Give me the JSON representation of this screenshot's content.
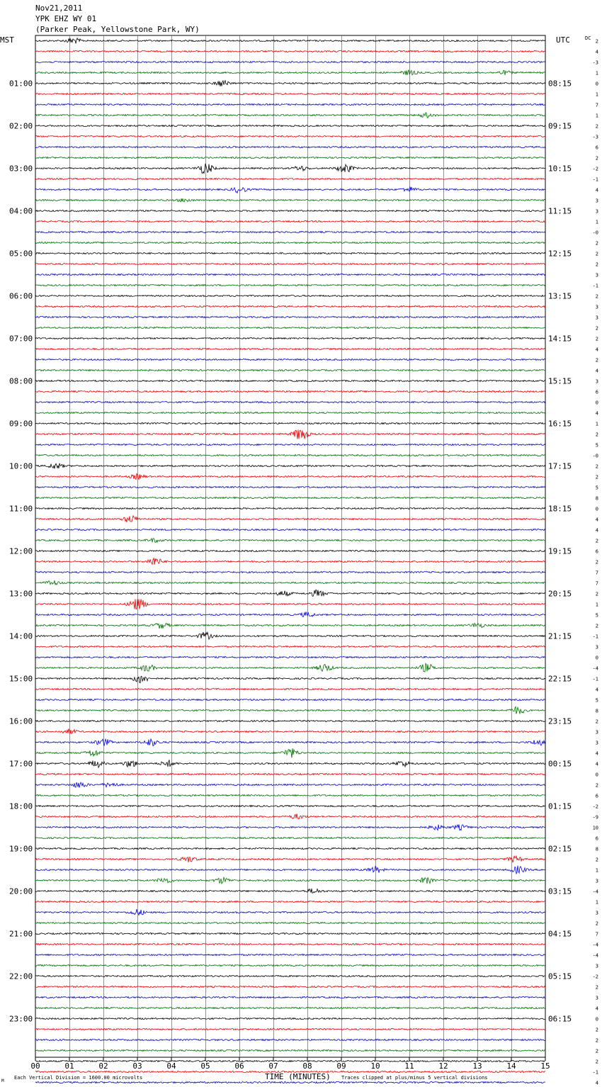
{
  "header": {
    "date": "Nov21,2011",
    "station": "YPK EHZ WY 01",
    "location": "(Parker Peak, Yellowstone Park, WY)"
  },
  "axis": {
    "left_tz": "MST",
    "right_tz": "UTC",
    "dc_label": "DC",
    "xlabel": "TIME (MINUTES)",
    "scale_note": "Each Vertical Division = 1600.00 microvolts",
    "clip_note": "Traces clipped at plus/minus 5 vertical divisions",
    "corner_mark": "M"
  },
  "chart_data": {
    "type": "line",
    "title": "YPK EHZ WY 01",
    "x_ticks": [
      "00",
      "01",
      "02",
      "03",
      "04",
      "05",
      "06",
      "07",
      "08",
      "09",
      "10",
      "11",
      "12",
      "13",
      "14",
      "15"
    ],
    "xlim": [
      0,
      15
    ],
    "left_hour_labels": [
      "01:00",
      "02:00",
      "03:00",
      "04:00",
      "05:00",
      "06:00",
      "07:00",
      "08:00",
      "09:00",
      "10:00",
      "11:00",
      "12:00",
      "13:00",
      "14:00",
      "15:00",
      "16:00",
      "17:00",
      "18:00",
      "19:00",
      "20:00",
      "21:00",
      "22:00",
      "23:00"
    ],
    "right_hour_labels": [
      "08:15",
      "09:15",
      "10:15",
      "11:15",
      "12:15",
      "13:15",
      "14:15",
      "15:15",
      "16:15",
      "17:15",
      "18:15",
      "19:15",
      "20:15",
      "21:15",
      "22:15",
      "23:15",
      "00:15",
      "01:15",
      "02:15",
      "03:15",
      "04:15",
      "05:15",
      "06:15"
    ],
    "trace_colors": [
      "#000000",
      "#e00000",
      "#0000d8",
      "#007000"
    ],
    "dc_offsets": [
      "2",
      "4",
      "-3",
      "1",
      "0",
      "1",
      "7",
      "1",
      "2",
      "-3",
      "6",
      "2",
      "-2",
      "-1",
      "4",
      "3",
      "3",
      "1",
      "-0",
      "2",
      "2",
      "2",
      "3",
      "-1",
      "2",
      "3",
      "3",
      "2",
      "2",
      "4",
      "2",
      "4",
      "3",
      "6",
      "0",
      "4",
      "1",
      "2",
      "5",
      "-0",
      "2",
      "2",
      "5",
      "8",
      "0",
      "4",
      "4",
      "2",
      "6",
      "2",
      "7",
      "7",
      "2",
      "1",
      "5",
      "2",
      "-1",
      "3",
      "0",
      "-4",
      "-1",
      "4",
      "5",
      "8",
      "2",
      "3",
      "3",
      "4",
      "4",
      "0",
      "2",
      "6",
      "-2",
      "-9",
      "10",
      "6",
      "8",
      "2",
      "1",
      "3",
      "-4",
      "1",
      "3",
      "2",
      "7",
      "-4",
      "-4",
      "3",
      "-2",
      "2",
      "3",
      "4",
      "0",
      "2",
      "2",
      "2",
      "2",
      "-1",
      "4",
      "-3"
    ],
    "events": [
      {
        "trace": 0,
        "minute": 1.1,
        "amp": 0.5
      },
      {
        "trace": 3,
        "minute": 11.0,
        "amp": 0.4
      },
      {
        "trace": 3,
        "minute": 13.8,
        "amp": 0.3
      },
      {
        "trace": 4,
        "minute": 5.5,
        "amp": 0.5
      },
      {
        "trace": 7,
        "minute": 11.5,
        "amp": 0.4
      },
      {
        "trace": 12,
        "minute": 5.0,
        "amp": 1.0
      },
      {
        "trace": 12,
        "minute": 9.1,
        "amp": 0.8
      },
      {
        "trace": 12,
        "minute": 7.8,
        "amp": 0.4
      },
      {
        "trace": 14,
        "minute": 6.0,
        "amp": 0.5
      },
      {
        "trace": 14,
        "minute": 11.0,
        "amp": 0.4
      },
      {
        "trace": 15,
        "minute": 4.4,
        "amp": 0.3
      },
      {
        "trace": 37,
        "minute": 7.8,
        "amp": 1.2
      },
      {
        "trace": 40,
        "minute": 0.6,
        "amp": 0.5
      },
      {
        "trace": 41,
        "minute": 3.0,
        "amp": 0.4
      },
      {
        "trace": 45,
        "minute": 2.8,
        "amp": 0.6
      },
      {
        "trace": 47,
        "minute": 3.5,
        "amp": 0.3
      },
      {
        "trace": 49,
        "minute": 3.5,
        "amp": 0.7
      },
      {
        "trace": 51,
        "minute": 0.5,
        "amp": 0.4
      },
      {
        "trace": 52,
        "minute": 8.3,
        "amp": 0.6
      },
      {
        "trace": 52,
        "minute": 7.3,
        "amp": 0.4
      },
      {
        "trace": 53,
        "minute": 3.0,
        "amp": 1.4
      },
      {
        "trace": 54,
        "minute": 8.0,
        "amp": 0.4
      },
      {
        "trace": 55,
        "minute": 3.7,
        "amp": 0.5
      },
      {
        "trace": 55,
        "minute": 13.0,
        "amp": 0.4
      },
      {
        "trace": 56,
        "minute": 5.0,
        "amp": 0.6
      },
      {
        "trace": 59,
        "minute": 3.3,
        "amp": 0.6
      },
      {
        "trace": 59,
        "minute": 8.5,
        "amp": 0.7
      },
      {
        "trace": 59,
        "minute": 11.5,
        "amp": 0.7
      },
      {
        "trace": 60,
        "minute": 3.1,
        "amp": 0.8
      },
      {
        "trace": 63,
        "minute": 14.2,
        "amp": 0.6
      },
      {
        "trace": 65,
        "minute": 1.0,
        "amp": 0.4
      },
      {
        "trace": 66,
        "minute": 2.0,
        "amp": 0.6
      },
      {
        "trace": 66,
        "minute": 3.4,
        "amp": 0.6
      },
      {
        "trace": 66,
        "minute": 14.8,
        "amp": 0.5
      },
      {
        "trace": 67,
        "minute": 7.5,
        "amp": 0.8
      },
      {
        "trace": 67,
        "minute": 1.7,
        "amp": 0.6
      },
      {
        "trace": 68,
        "minute": 1.8,
        "amp": 0.6
      },
      {
        "trace": 68,
        "minute": 2.8,
        "amp": 0.6
      },
      {
        "trace": 68,
        "minute": 3.9,
        "amp": 0.5
      },
      {
        "trace": 68,
        "minute": 10.8,
        "amp": 0.5
      },
      {
        "trace": 70,
        "minute": 1.3,
        "amp": 0.5
      },
      {
        "trace": 70,
        "minute": 2.2,
        "amp": 0.4
      },
      {
        "trace": 73,
        "minute": 7.7,
        "amp": 0.4
      },
      {
        "trace": 74,
        "minute": 11.8,
        "amp": 0.4
      },
      {
        "trace": 74,
        "minute": 12.5,
        "amp": 0.4
      },
      {
        "trace": 77,
        "minute": 4.5,
        "amp": 0.5
      },
      {
        "trace": 77,
        "minute": 14.1,
        "amp": 0.5
      },
      {
        "trace": 78,
        "minute": 10.0,
        "amp": 0.5
      },
      {
        "trace": 78,
        "minute": 14.2,
        "amp": 0.6
      },
      {
        "trace": 79,
        "minute": 3.8,
        "amp": 0.5
      },
      {
        "trace": 79,
        "minute": 5.5,
        "amp": 0.5
      },
      {
        "trace": 79,
        "minute": 11.5,
        "amp": 0.5
      },
      {
        "trace": 80,
        "minute": 8.2,
        "amp": 0.4
      },
      {
        "trace": 82,
        "minute": 3.0,
        "amp": 0.5
      }
    ]
  }
}
